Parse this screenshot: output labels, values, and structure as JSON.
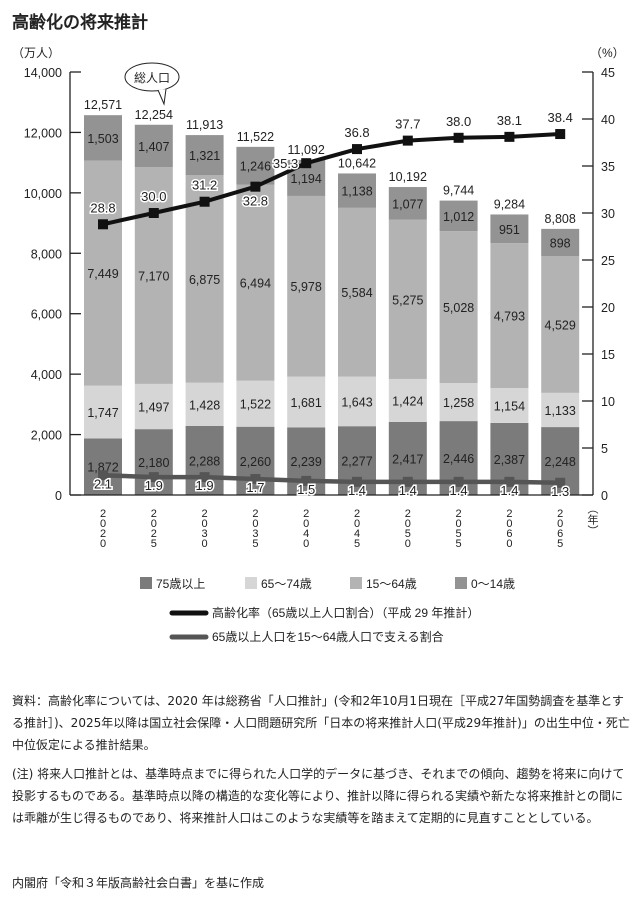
{
  "title": "高齢化の将来推計",
  "chart_data": {
    "type": "bar",
    "stacked": true,
    "title": "高齢化の将来推計",
    "ylabel": "（万人）",
    "y2label": "（%）",
    "xlabel": "（年）",
    "ylim": [
      0,
      14000
    ],
    "y2lim": [
      0,
      45
    ],
    "yticks": [
      "0",
      "2,000",
      "4,000",
      "6,000",
      "8,000",
      "10,000",
      "12,000",
      "14,000"
    ],
    "ytick_values": [
      0,
      2000,
      4000,
      6000,
      8000,
      10000,
      12000,
      14000
    ],
    "y2ticks": [
      0,
      5,
      10,
      15,
      20,
      25,
      30,
      35,
      40,
      45
    ],
    "categories": [
      "2020",
      "2025",
      "2030",
      "2035",
      "2040",
      "2045",
      "2050",
      "2055",
      "2060",
      "2065"
    ],
    "callout": "総人口",
    "totals": [
      "12,571",
      "12,254",
      "11,913",
      "11,522",
      "11,092",
      "10,642",
      "10,192",
      "9,744",
      "9,284",
      "8,808"
    ],
    "series": [
      {
        "name": "75歳以上",
        "color": "#7b7b7b",
        "values": [
          1872,
          2180,
          2288,
          2260,
          2239,
          2277,
          2417,
          2446,
          2387,
          2248
        ]
      },
      {
        "name": "65〜74歳",
        "color": "#d6d6d6",
        "values": [
          1747,
          1497,
          1428,
          1522,
          1681,
          1643,
          1424,
          1258,
          1154,
          1133
        ]
      },
      {
        "name": "15〜64歳",
        "color": "#b3b3b3",
        "values": [
          7449,
          7170,
          6875,
          6494,
          5978,
          5584,
          5275,
          5028,
          4793,
          4529
        ]
      },
      {
        "name": "0〜14歳",
        "color": "#939393",
        "values": [
          1503,
          1407,
          1321,
          1246,
          1194,
          1138,
          1077,
          1012,
          951,
          898
        ]
      }
    ],
    "lines": [
      {
        "name": "高齢化率（65歳以上人口割合）（平成 29 年推計）",
        "axis": "right",
        "color": "#111111",
        "values": [
          28.8,
          30.0,
          31.2,
          32.8,
          35.3,
          36.8,
          37.7,
          38.0,
          38.1,
          38.4
        ]
      },
      {
        "name": "65歳以上人口を15〜64歳人口で支える割合",
        "axis": "right",
        "color": "#555555",
        "values": [
          2.1,
          1.9,
          1.9,
          1.7,
          1.5,
          1.4,
          1.4,
          1.4,
          1.4,
          1.3
        ]
      }
    ],
    "legend_placement": "bottom",
    "grid": false
  },
  "notes": {
    "source": "資料：高齢化率については、2020 年は総務省「人口推計」(令和2年10月1日現在［平成27年国勢調査を基準とする推計］)、2025年以降は国立社会保障・人口問題研究所「日本の将来推計人口(平成29年推計)」の出生中位・死亡中位仮定による推計結果。",
    "caveat": "(注) 将来人口推計とは、基準時点までに得られた人口学的データに基づき、それまでの傾向、趨勢を将来に向けて投影するものである。基準時点以降の構造的な変化等により、推計以降に得られる実績や新たな将来推計との間には乖離が生じ得るものであり、将来推計人口はこのような実績等を踏まえて定期的に見直すこととしている。",
    "credit": "内閣府「令和３年版高齢社会白書」を基に作成"
  }
}
